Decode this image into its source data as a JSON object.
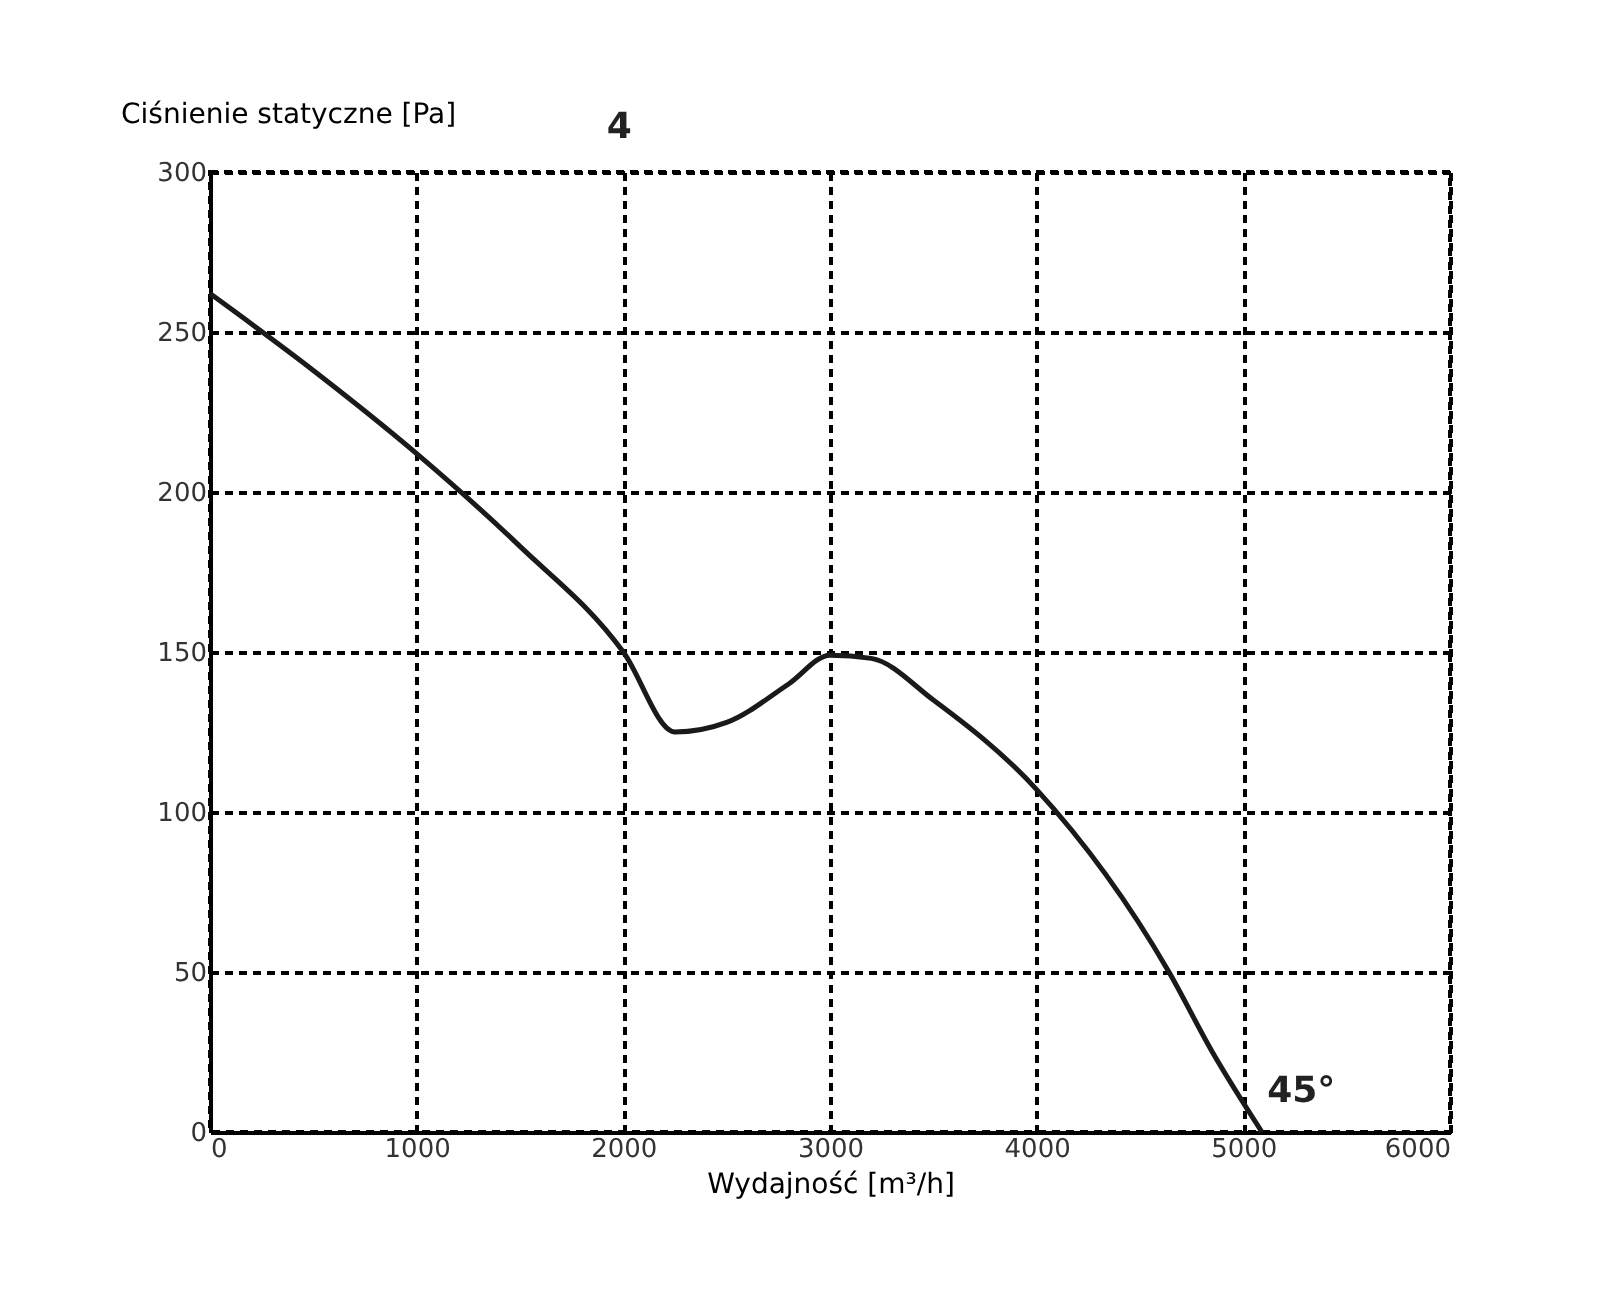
{
  "chart_data": {
    "type": "line",
    "xlabel": "Wydajność [m³/h]",
    "ylabel": "Ciśnienie statyczne [Pa]",
    "annotations": [
      "4",
      "45°"
    ],
    "x": [
      0,
      500,
      1000,
      1500,
      2000,
      2250,
      2500,
      2800,
      3000,
      3200,
      3500,
      4000,
      4640,
      4850,
      5090
    ],
    "series": [
      {
        "color": "#1a1a1a",
        "values": [
          262,
          238,
          212,
          183,
          150,
          125,
          128,
          140,
          149,
          148,
          135,
          107,
          50,
          25,
          0
        ]
      }
    ],
    "xlim": [
      0,
      6000
    ],
    "xticks": [
      0,
      1000,
      2000,
      3000,
      4000,
      5000,
      6000
    ],
    "ylim": [
      0,
      300
    ],
    "yticks": [
      0,
      50,
      100,
      150,
      200,
      250,
      300
    ],
    "grid": true,
    "marker": "none",
    "line_style": "solid"
  }
}
